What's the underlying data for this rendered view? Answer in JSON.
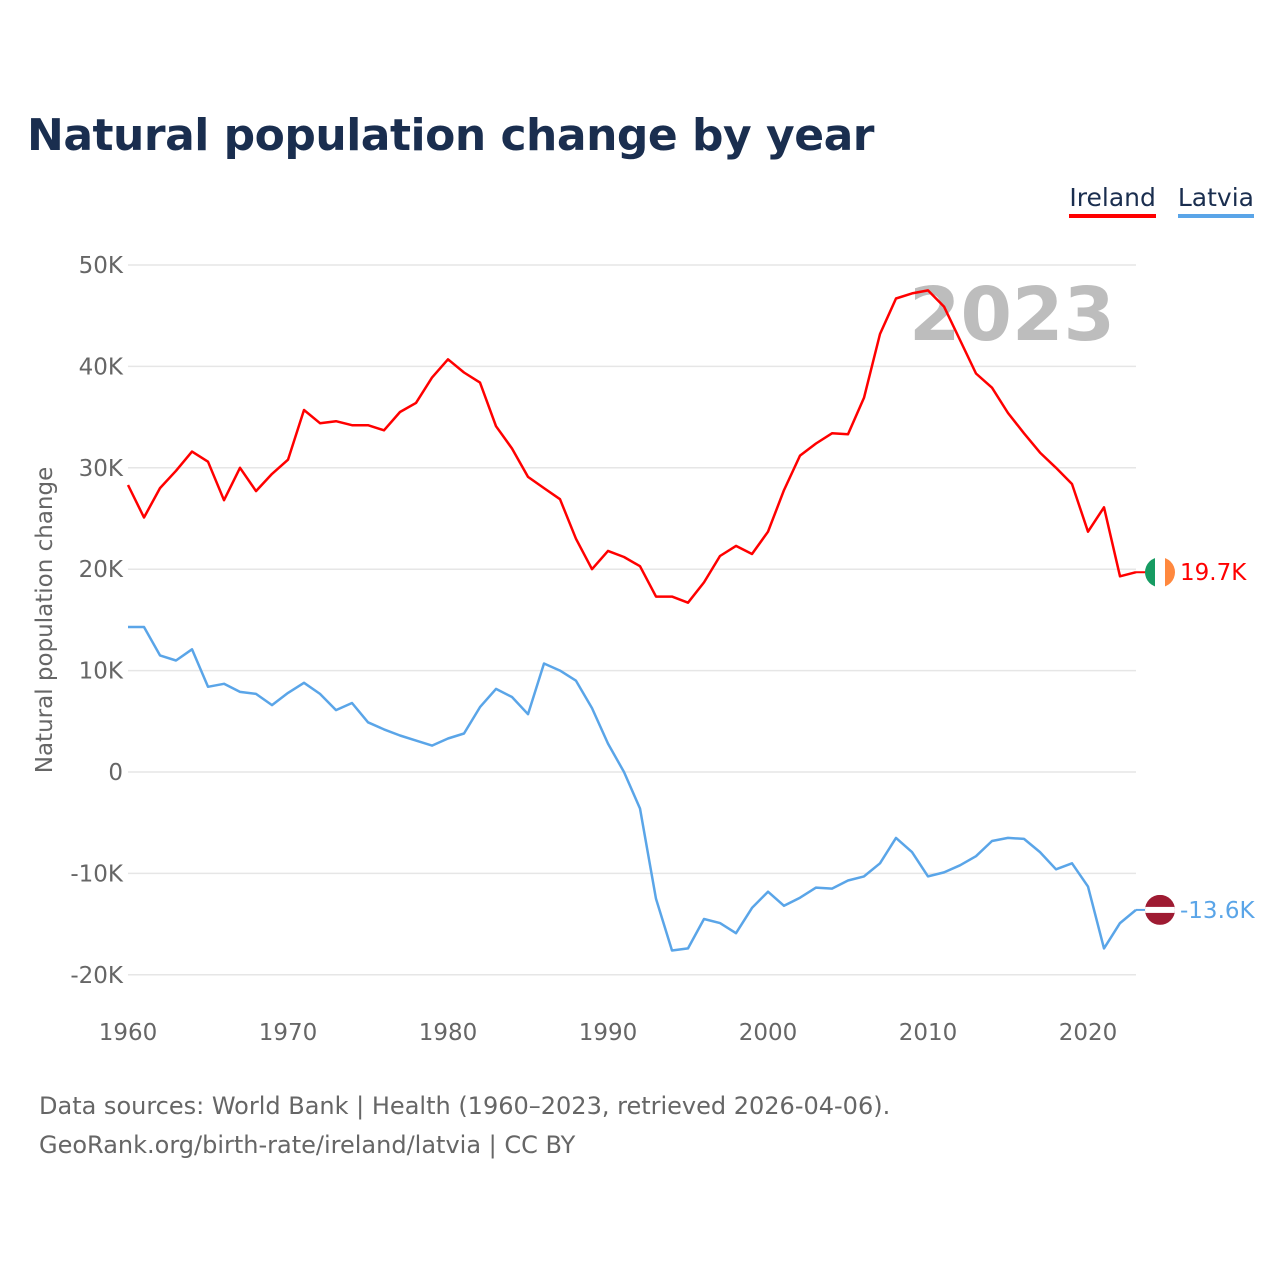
{
  "title": "Natural population change by year",
  "legend": [
    {
      "label": "Ireland",
      "color": "#ff0000"
    },
    {
      "label": "Latvia",
      "color": "#5aa5e8"
    }
  ],
  "year_watermark": "2023",
  "footer": {
    "line1": "Data sources: World Bank | Health (1960–2023, retrieved 2026-04-06).",
    "line2": "GeoRank.org/birth-rate/ireland/latvia | CC BY"
  },
  "chart_data": {
    "type": "line",
    "title": "Natural population change by year",
    "xlabel": "",
    "ylabel": "Natural population change",
    "xlim": [
      1960,
      2023
    ],
    "ylim": [
      -20000,
      50000
    ],
    "grid": true,
    "legend_position": "top-right",
    "x_ticks": [
      1960,
      1970,
      1980,
      1990,
      2000,
      2010,
      2020
    ],
    "x_tick_labels": [
      "1960",
      "1970",
      "1980",
      "1990",
      "2000",
      "2010",
      "2020"
    ],
    "y_ticks": [
      -20000,
      -10000,
      0,
      10000,
      20000,
      30000,
      40000,
      50000
    ],
    "y_tick_labels": [
      "-20K",
      "-10K",
      "0",
      "10K",
      "20K",
      "30K",
      "40K",
      "50K"
    ],
    "x_start": 1960,
    "series": [
      {
        "name": "Ireland",
        "color": "#ff0000",
        "end_label": "19.7K",
        "values": [
          28300,
          25100,
          28000,
          29700,
          31600,
          30600,
          26800,
          30000,
          27700,
          29400,
          30800,
          35700,
          34400,
          34600,
          34200,
          34200,
          33700,
          35500,
          36400,
          38900,
          40700,
          39400,
          38400,
          34100,
          31900,
          29100,
          28000,
          26900,
          23000,
          20000,
          21800,
          21200,
          20300,
          17300,
          17300,
          16700,
          18700,
          21300,
          22300,
          21500,
          23700,
          27800,
          31200,
          32400,
          33400,
          33300,
          36900,
          43200,
          46700,
          47200,
          47500,
          45900,
          42600,
          39300,
          37900,
          35400,
          33400,
          31500,
          30000,
          28400,
          23700,
          26100,
          19300,
          19700
        ]
      },
      {
        "name": "Latvia",
        "color": "#5aa5e8",
        "end_label": "-13.6K",
        "values": [
          14300,
          14300,
          11500,
          11000,
          12100,
          8400,
          8700,
          7900,
          7700,
          6600,
          7800,
          8800,
          7700,
          6100,
          6800,
          4900,
          4200,
          3600,
          3100,
          2600,
          3300,
          3800,
          6400,
          8200,
          7400,
          5700,
          10700,
          10000,
          9000,
          6300,
          2800,
          0,
          -3600,
          -12500,
          -17600,
          -17400,
          -14500,
          -14900,
          -15900,
          -13400,
          -11800,
          -13200,
          -12400,
          -11400,
          -11500,
          -10700,
          -10300,
          -9000,
          -6500,
          -7900,
          -10300,
          -9900,
          -9200,
          -8300,
          -6800,
          -6500,
          -6600,
          -7900,
          -9600,
          -9000,
          -11300,
          -17400,
          -14900,
          -13600
        ]
      }
    ]
  }
}
